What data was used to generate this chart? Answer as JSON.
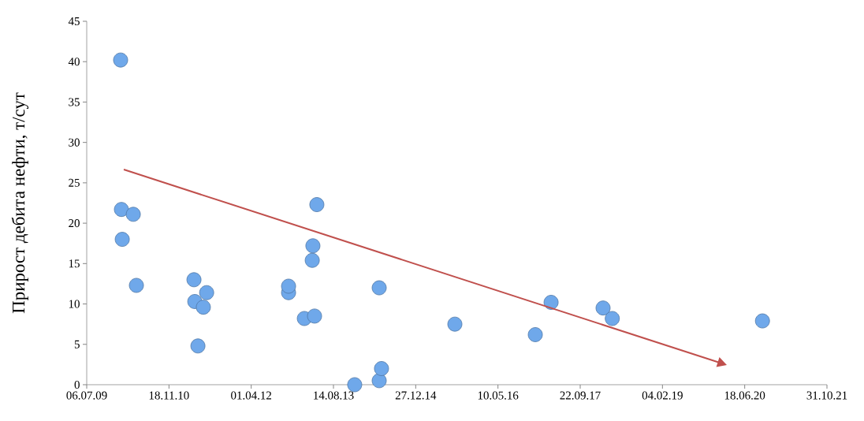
{
  "chart_data": {
    "type": "scatter",
    "ylabel": "Прирост дебита нефти, т/сут",
    "xlim": [
      "2009-07-06",
      "2021-10-31"
    ],
    "ylim": [
      0,
      45
    ],
    "xticks": [
      {
        "value": "2009-07-06",
        "label": "06.07.09"
      },
      {
        "value": "2010-11-18",
        "label": "18.11.10"
      },
      {
        "value": "2012-04-01",
        "label": "01.04.12"
      },
      {
        "value": "2013-08-14",
        "label": "14.08.13"
      },
      {
        "value": "2014-12-27",
        "label": "27.12.14"
      },
      {
        "value": "2016-05-10",
        "label": "10.05.16"
      },
      {
        "value": "2017-09-22",
        "label": "22.09.17"
      },
      {
        "value": "2019-02-04",
        "label": "04.02.19"
      },
      {
        "value": "2020-06-18",
        "label": "18.06.20"
      },
      {
        "value": "2021-10-31",
        "label": "31.10.21"
      }
    ],
    "yticks": [
      0,
      5,
      10,
      15,
      20,
      25,
      30,
      35,
      40,
      45
    ],
    "grid": false,
    "marker": "circle",
    "series": [
      {
        "color": "#6fa8ea",
        "x": [
          "2010-01-28",
          "2010-02-02",
          "2010-04-15",
          "2010-02-07",
          "2010-05-04",
          "2011-04-19",
          "2011-04-24",
          "2011-06-15",
          "2011-07-05",
          "2011-05-13",
          "2012-11-14",
          "2012-11-14",
          "2013-02-18",
          "2013-04-21",
          "2013-04-07",
          "2013-04-11",
          "2013-05-05",
          "2013-12-21",
          "2014-05-19",
          "2014-06-02",
          "2014-05-19",
          "2015-08-22",
          "2016-12-23",
          "2017-03-29",
          "2018-02-08",
          "2018-04-05",
          "2020-10-04"
        ],
        "values": [
          40.2,
          21.7,
          21.1,
          18.0,
          12.3,
          13.0,
          10.3,
          9.6,
          11.4,
          4.8,
          11.4,
          12.2,
          8.2,
          8.5,
          15.4,
          17.2,
          22.3,
          0.0,
          0.5,
          2.0,
          12.0,
          7.5,
          6.2,
          10.2,
          9.5,
          8.2,
          7.9
        ]
      }
    ]
  }
}
